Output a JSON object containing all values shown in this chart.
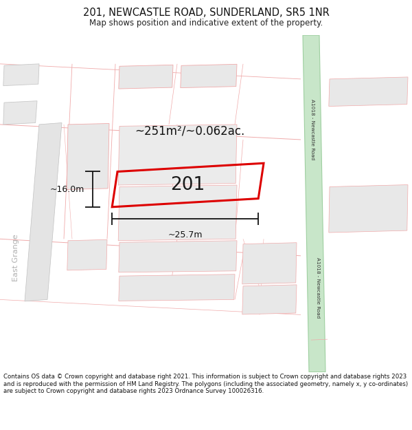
{
  "title_line1": "201, NEWCASTLE ROAD, SUNDERLAND, SR5 1NR",
  "title_line2": "Map shows position and indicative extent of the property.",
  "footer_text": "Contains OS data © Crown copyright and database right 2021. This information is subject to Crown copyright and database rights 2023 and is reproduced with the permission of HM Land Registry. The polygons (including the associated geometry, namely x, y co-ordinates) are subject to Crown copyright and database rights 2023 Ordnance Survey 100026316.",
  "area_label": "~251m²/~0.062ac.",
  "plot_label": "201",
  "dim_width": "~25.7m",
  "dim_height": "~16.0m",
  "bg_color": "#ffffff",
  "map_bg": "#f7f7f7",
  "road_green_fill": "#c8e6c9",
  "road_green_edge": "#9ecfa0",
  "plot_edge_color": "#dd0000",
  "plot_fill_color": "none",
  "building_fill": "#e8e8e8",
  "building_edge_pink": "#f0aaaa",
  "building_edge_grey": "#c8c8c8",
  "street_line_pink": "#f0aaaa",
  "street_line_grey": "#c8c8c8",
  "dim_line_color": "#111111",
  "label_color": "#111111",
  "road_text_color": "#333333",
  "eastgrange_color": "#b0b0b0"
}
